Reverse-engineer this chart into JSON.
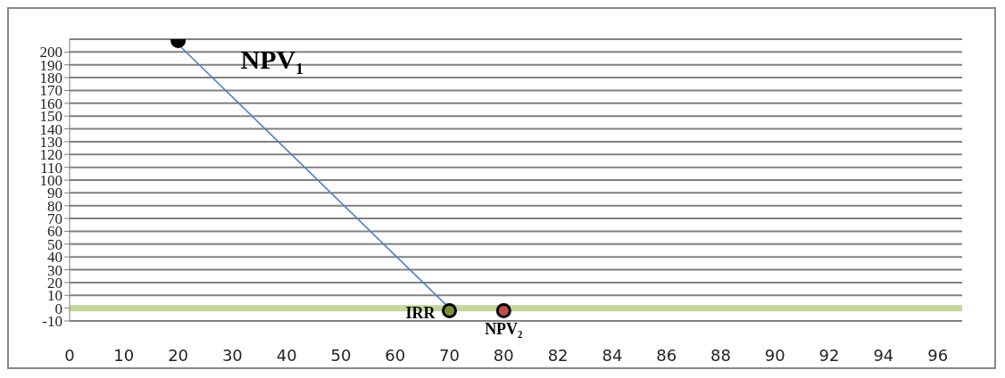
{
  "chart_data": {
    "type": "line",
    "categories": [
      "0",
      "10",
      "20",
      "30",
      "40",
      "50",
      "60",
      "70",
      "80",
      "82",
      "84",
      "86",
      "88",
      "90",
      "92",
      "94",
      "96"
    ],
    "series": [
      {
        "color": "#4f81bd",
        "values": [
          null,
          null,
          206,
          null,
          null,
          null,
          null,
          0,
          null,
          null,
          null,
          null,
          null,
          null,
          null,
          null,
          null
        ],
        "marker": "none"
      },
      {
        "type": "scatter",
        "values": [
          null,
          null,
          209,
          null,
          null,
          null,
          null,
          -2,
          -2,
          null,
          null,
          null,
          null,
          null,
          null,
          null,
          null
        ],
        "colors": [
          null,
          null,
          "#000000",
          null,
          null,
          null,
          null,
          "#77933c",
          "#c0504d",
          null,
          null,
          null,
          null,
          null,
          null,
          null,
          null
        ],
        "marker": "circle"
      }
    ],
    "annotations": [
      {
        "text": "NPV₁",
        "x": "20",
        "y": 209
      },
      {
        "text": "IRR",
        "x": "70",
        "y": -2
      },
      {
        "text": "NPV₂",
        "x": "80",
        "y": -2
      }
    ],
    "ref_lines": [
      {
        "axis": "y",
        "value": 0,
        "color": "#c3d69b"
      }
    ],
    "ylim": [
      -10,
      210
    ],
    "yticks": [
      -10,
      0,
      10,
      20,
      30,
      40,
      50,
      60,
      70,
      80,
      90,
      100,
      110,
      120,
      130,
      140,
      150,
      160,
      170,
      180,
      190,
      200
    ],
    "grid": "y"
  }
}
